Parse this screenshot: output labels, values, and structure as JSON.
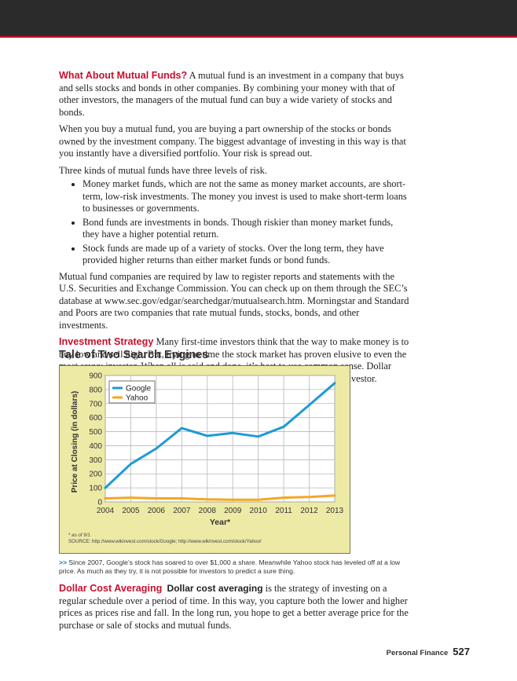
{
  "paragraph_mutual": {
    "heading": "What About Mutual Funds?",
    "body": " A mutual fund is an investment in a company that buys and sells stocks and bonds in other companies. By combining your money with that of other investors, the managers of the mutual fund can buy a wide variety of stocks and bonds."
  },
  "paragraph_buy": "When you buy a mutual fund, you are buying a part ownership of the stocks or bonds owned by the investment company. The biggest advantage of investing in this way is that you instantly have a diversified portfolio. Your risk is spread out.",
  "paragraph_kinds": "Three kinds of mutual funds have three levels of risk.",
  "bullets": [
    "Money market funds, which are not the same as money market accounts, are short-term, low-risk investments. The money you invest is used to make short-term loans to businesses or governments.",
    "Bond funds are investments in bonds. Though riskier than money market funds, they have a higher potential return.",
    "Stock funds are made up of a variety of stocks. Over the long term, they have provided higher returns than either market funds or bond funds."
  ],
  "paragraph_sec": "Mutual fund companies are required by law to register reports and statements with the U.S. Securities and Exchange Commission. You can check up on them through the SEC’s database at www.sec.gov/edgar/searchedgar/mutualsearch.htm. Morningstar and Standard and Poors are two companies that rate mutual funds, stocks, bonds, and other investments.",
  "paragraph_strategy": {
    "heading": "Investment Strategy",
    "body": " Many first-time investors think that the way to make money is to buy low and sell high. But, trying to time the stock market has proven elusive to even the most savvy investor. When all is said and done, it’s best to use common sense. Dollar cost averaging is one simple investment strategy that rewards the patient investor."
  },
  "chart_data": {
    "type": "line",
    "title": "Tale of Two Search Engines",
    "xlabel": "Year*",
    "ylabel": "Price at Closing (in dollars)",
    "x": [
      "2004",
      "2005",
      "2006",
      "2007",
      "2008",
      "2009",
      "2010",
      "2011",
      "2012",
      "2013"
    ],
    "yticks": [
      "0",
      "100",
      "200",
      "300",
      "400",
      "500",
      "600",
      "700",
      "800",
      "900"
    ],
    "ylim": [
      0,
      900
    ],
    "grid": true,
    "legend_position": "top-left",
    "series": [
      {
        "name": "Google",
        "color": "#1f9ad6",
        "values": [
          100,
          270,
          380,
          525,
          470,
          490,
          465,
          535,
          690,
          845
        ]
      },
      {
        "name": "Yahoo",
        "color": "#f6a623",
        "values": [
          25,
          30,
          25,
          25,
          18,
          15,
          15,
          30,
          35,
          45
        ]
      }
    ],
    "footnote": "* as of 9/1",
    "source": "SOURCE: http://www.wikinvest.com/stock/Google; http://www.wikinvest.com/stock/Yahoo!"
  },
  "caption": {
    "marker": ">>",
    "text": " Since 2007, Google’s stock has soared to over $1,000 a share. Meanwhile Yahoo stock has leveled off at a low price. As much as they try, it is not possible for investors to predict a sure thing."
  },
  "paragraph_dca": {
    "heading": "Dollar Cost Averaging",
    "term": "Dollar cost averaging",
    "body": " is the strategy of investing on a regular schedule over a period of time. In this way, you capture both the lower and higher prices as prices rise and fall. In the long run, you hope to get a better average price for the purchase or sale of stocks and mutual funds."
  },
  "footer": {
    "section": "Personal Finance",
    "page": "527"
  }
}
